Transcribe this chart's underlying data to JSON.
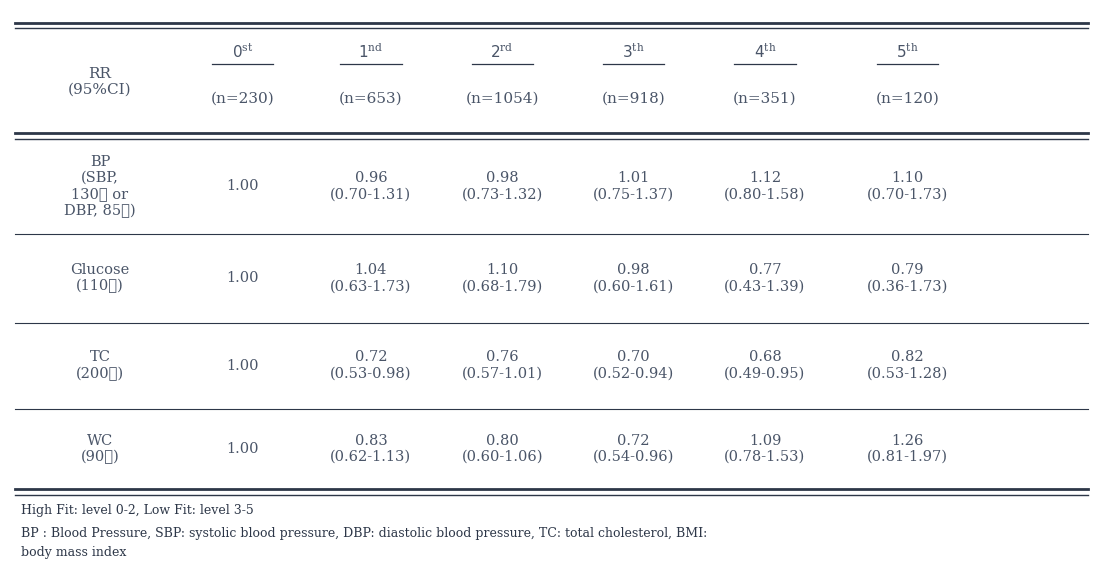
{
  "col_headers_main": [
    "RR\n(95%CI)",
    "0",
    "1",
    "2",
    "3",
    "4",
    "5"
  ],
  "col_headers_sup": [
    "",
    "st",
    "nd",
    "rd",
    "th",
    "th",
    "th"
  ],
  "col_headers_n": [
    "",
    "(n=230)",
    "(n=653)",
    "(n=1054)",
    "(n=918)",
    "(n=351)",
    "(n=120)"
  ],
  "col0_labels": [
    "BP\n(SBP,\n130≧ or\nDBP, 85≧)",
    "Glucose\n(110≧)",
    "TC\n(200≧)",
    "WC\n(90≧)"
  ],
  "rows": [
    [
      "1.00",
      "0.96\n(0.70-1.31)",
      "0.98\n(0.73-1.32)",
      "1.01\n(0.75-1.37)",
      "1.12\n(0.80-1.58)",
      "1.10\n(0.70-1.73)"
    ],
    [
      "1.00",
      "1.04\n(0.63-1.73)",
      "1.10\n(0.68-1.79)",
      "0.98\n(0.60-1.61)",
      "0.77\n(0.43-1.39)",
      "0.79\n(0.36-1.73)"
    ],
    [
      "1.00",
      "0.72\n(0.53-0.98)",
      "0.76\n(0.57-1.01)",
      "0.70\n(0.52-0.94)",
      "0.68\n(0.49-0.95)",
      "0.82\n(0.53-1.28)"
    ],
    [
      "1.00",
      "0.83\n(0.62-1.13)",
      "0.80\n(0.60-1.06)",
      "0.72\n(0.54-0.96)",
      "1.09\n(0.78-1.53)",
      "1.26\n(0.81-1.97)"
    ]
  ],
  "footnote1": "High Fit: level 0-2, Low Fit: level 3-5",
  "footnote2": "BP : Blood Pressure, SBP: systolic blood pressure, DBP: diastolic blood pressure, TC: total cholesterol, BMI:",
  "footnote3": "body mass index",
  "bg_color": "#ffffff",
  "text_color": "#4a5568",
  "line_color": "#2d3748",
  "font_size": 10.5,
  "header_font_size": 11,
  "footnote_font_size": 9
}
